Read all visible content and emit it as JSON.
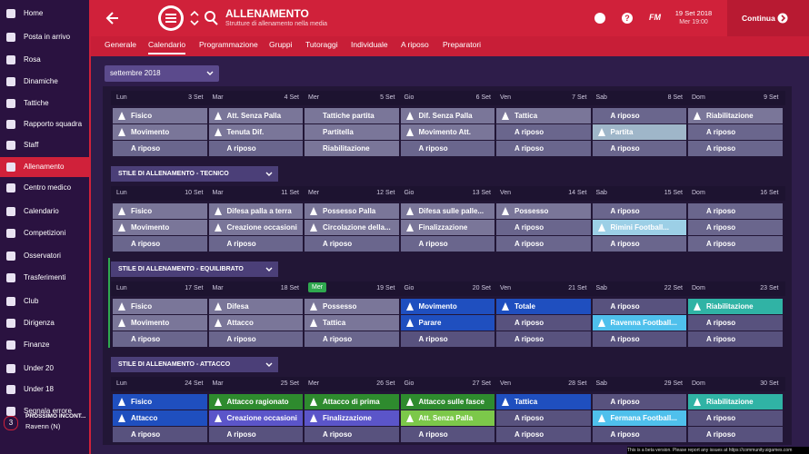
{
  "sidebar": {
    "items": [
      "Home",
      "Posta in arrivo",
      "Rosa",
      "Dinamiche",
      "Tattiche",
      "Rapporto squadra",
      "Staff",
      "Allenamento",
      "Centro medico",
      "Calendario",
      "Competizioni",
      "Osservatori",
      "Trasferimenti",
      "Club",
      "Dirigenza",
      "Finanze",
      "Under 20",
      "Under 18",
      "Segnala errore"
    ],
    "next_match": {
      "badge": "3",
      "label": "PROSSIMO INCONT...",
      "opponent": "Ravenn (N)"
    }
  },
  "header": {
    "title": "ALLENAMENTO",
    "subtitle": "Strutture di allenamento nella media",
    "brand": "FM",
    "date": "19 Set 2018",
    "time": "Mer 19:00",
    "continue": "Continua"
  },
  "tabs": [
    "Generale",
    "Calendario",
    "Programmazione",
    "Gruppi",
    "Tutoraggi",
    "Individuale",
    "A riposo",
    "Preparatori"
  ],
  "month": "settembre 2018",
  "weeks": [
    {
      "days": [
        {
          "name": "Lun",
          "date": "3 Set"
        },
        {
          "name": "Mar",
          "date": "4 Set"
        },
        {
          "name": "Mer",
          "date": "5 Set"
        },
        {
          "name": "Gio",
          "date": "6 Set"
        },
        {
          "name": "Ven",
          "date": "7 Set"
        },
        {
          "name": "Sab",
          "date": "8 Set"
        },
        {
          "name": "Dom",
          "date": "9 Set"
        }
      ],
      "rows": [
        [
          {
            "label": "Fisico",
            "color": "#7a7699"
          },
          {
            "label": "Att. Senza Palla",
            "color": "#7a7699"
          },
          {
            "label": "Tattiche partita",
            "color": "#7a7699"
          },
          {
            "label": "Dif. Senza Palla",
            "color": "#7a7699"
          },
          {
            "label": "Tattica",
            "color": "#7a7699"
          },
          {
            "label": "A riposo",
            "color": "#6a668d"
          },
          {
            "label": "Riabilitazione",
            "color": "#7a7699"
          }
        ],
        [
          {
            "label": "Movimento",
            "color": "#7a7699"
          },
          {
            "label": "Tenuta Dif.",
            "color": "#7a7699"
          },
          {
            "label": "Partitella",
            "color": "#7a7699"
          },
          {
            "label": "Movimento Att.",
            "color": "#7a7699"
          },
          {
            "label": "A riposo",
            "color": "#6a668d"
          },
          {
            "label": "Partita",
            "color": "#9fb6c9"
          },
          {
            "label": "A riposo",
            "color": "#6a668d"
          }
        ],
        [
          {
            "label": "A riposo",
            "color": "#6a668d"
          },
          {
            "label": "A riposo",
            "color": "#6a668d"
          },
          {
            "label": "Riabilitazione",
            "color": "#7a7699"
          },
          {
            "label": "A riposo",
            "color": "#6a668d"
          },
          {
            "label": "A riposo",
            "color": "#6a668d"
          },
          {
            "label": "A riposo",
            "color": "#6a668d"
          },
          {
            "label": "A riposo",
            "color": "#6a668d"
          }
        ]
      ]
    },
    {
      "style": "STILE DI ALLENAMENTO - TECNICO",
      "days": [
        {
          "name": "Lun",
          "date": "10 Set"
        },
        {
          "name": "Mar",
          "date": "11 Set"
        },
        {
          "name": "Mer",
          "date": "12 Set"
        },
        {
          "name": "Gio",
          "date": "13 Set"
        },
        {
          "name": "Ven",
          "date": "14 Set"
        },
        {
          "name": "Sab",
          "date": "15 Set"
        },
        {
          "name": "Dom",
          "date": "16 Set"
        }
      ],
      "rows": [
        [
          {
            "label": "Fisico",
            "color": "#7a7699"
          },
          {
            "label": "Difesa palla a terra",
            "color": "#7a7699"
          },
          {
            "label": "Possesso Palla",
            "color": "#7a7699"
          },
          {
            "label": "Difesa sulle palle...",
            "color": "#7a7699"
          },
          {
            "label": "Possesso",
            "color": "#7a7699"
          },
          {
            "label": "A riposo",
            "color": "#6a668d"
          },
          {
            "label": "A riposo",
            "color": "#6a668d"
          }
        ],
        [
          {
            "label": "Movimento",
            "color": "#7a7699"
          },
          {
            "label": "Creazione occasioni",
            "color": "#7a7699"
          },
          {
            "label": "Circolazione della...",
            "color": "#7a7699"
          },
          {
            "label": "Finalizzazione",
            "color": "#7a7699"
          },
          {
            "label": "A riposo",
            "color": "#6a668d"
          },
          {
            "label": "Rimini Football...",
            "color": "#9ccfe6"
          },
          {
            "label": "A riposo",
            "color": "#6a668d"
          }
        ],
        [
          {
            "label": "A riposo",
            "color": "#6a668d"
          },
          {
            "label": "A riposo",
            "color": "#6a668d"
          },
          {
            "label": "A riposo",
            "color": "#6a668d"
          },
          {
            "label": "A riposo",
            "color": "#6a668d"
          },
          {
            "label": "A riposo",
            "color": "#6a668d"
          },
          {
            "label": "A riposo",
            "color": "#6a668d"
          },
          {
            "label": "A riposo",
            "color": "#6a668d"
          }
        ]
      ]
    },
    {
      "style": "STILE DI ALLENAMENTO - EQUILIBRATO",
      "days": [
        {
          "name": "Lun",
          "date": "17 Set"
        },
        {
          "name": "Mar",
          "date": "18 Set"
        },
        {
          "name": "Mer",
          "date": "19 Set",
          "highlight": "#2fa84f"
        },
        {
          "name": "Gio",
          "date": "20 Set"
        },
        {
          "name": "Ven",
          "date": "21 Set"
        },
        {
          "name": "Sab",
          "date": "22 Set"
        },
        {
          "name": "Dom",
          "date": "23 Set"
        }
      ],
      "rows": [
        [
          {
            "label": "Fisico",
            "color": "#7a7699"
          },
          {
            "label": "Difesa",
            "color": "#7a7699"
          },
          {
            "label": "Possesso",
            "color": "#7a7699"
          },
          {
            "label": "Movimento",
            "color": "#1f4fbf"
          },
          {
            "label": "Totale",
            "color": "#1f4fbf"
          },
          {
            "label": "A riposo",
            "color": "#58527e"
          },
          {
            "label": "Riabilitazione",
            "color": "#30b3a5"
          }
        ],
        [
          {
            "label": "Movimento",
            "color": "#7a7699"
          },
          {
            "label": "Attacco",
            "color": "#7a7699"
          },
          {
            "label": "Tattica",
            "color": "#7a7699"
          },
          {
            "label": "Parare",
            "color": "#1f4fbf"
          },
          {
            "label": "A riposo",
            "color": "#58527e"
          },
          {
            "label": "Ravenna Football...",
            "color": "#4fc0ec"
          },
          {
            "label": "A riposo",
            "color": "#58527e"
          }
        ],
        [
          {
            "label": "A riposo",
            "color": "#6a668d"
          },
          {
            "label": "A riposo",
            "color": "#6a668d"
          },
          {
            "label": "A riposo",
            "color": "#6a668d"
          },
          {
            "label": "A riposo",
            "color": "#58527e"
          },
          {
            "label": "A riposo",
            "color": "#58527e"
          },
          {
            "label": "A riposo",
            "color": "#58527e"
          },
          {
            "label": "A riposo",
            "color": "#58527e"
          }
        ]
      ]
    },
    {
      "style": "STILE DI ALLENAMENTO - ATTACCO",
      "days": [
        {
          "name": "Lun",
          "date": "24 Set"
        },
        {
          "name": "Mar",
          "date": "25 Set"
        },
        {
          "name": "Mer",
          "date": "26 Set"
        },
        {
          "name": "Gio",
          "date": "27 Set"
        },
        {
          "name": "Ven",
          "date": "28 Set"
        },
        {
          "name": "Sab",
          "date": "29 Set"
        },
        {
          "name": "Dom",
          "date": "30 Set"
        }
      ],
      "rows": [
        [
          {
            "label": "Fisico",
            "color": "#1f4fbf"
          },
          {
            "label": "Attacco ragionato",
            "color": "#2e8b2e"
          },
          {
            "label": "Attacco di prima",
            "color": "#2e8b2e"
          },
          {
            "label": "Attacco sulle fasce",
            "color": "#2e8b2e"
          },
          {
            "label": "Tattica",
            "color": "#1f4fbf"
          },
          {
            "label": "A riposo",
            "color": "#58527e"
          },
          {
            "label": "Riabilitazione",
            "color": "#30b3a5"
          }
        ],
        [
          {
            "label": "Attacco",
            "color": "#1f4fbf"
          },
          {
            "label": "Creazione occasioni",
            "color": "#5b55c9"
          },
          {
            "label": "Finalizzazione",
            "color": "#5b55c9"
          },
          {
            "label": "Att. Senza Palla",
            "color": "#7cc84a"
          },
          {
            "label": "A riposo",
            "color": "#58527e"
          },
          {
            "label": "Fermana Football...",
            "color": "#4fc0ec"
          },
          {
            "label": "A riposo",
            "color": "#58527e"
          }
        ],
        [
          {
            "label": "A riposo",
            "color": "#58527e"
          },
          {
            "label": "A riposo",
            "color": "#58527e"
          },
          {
            "label": "A riposo",
            "color": "#58527e"
          },
          {
            "label": "A riposo",
            "color": "#58527e"
          },
          {
            "label": "A riposo",
            "color": "#58527e"
          },
          {
            "label": "A riposo",
            "color": "#58527e"
          },
          {
            "label": "A riposo",
            "color": "#58527e"
          }
        ]
      ]
    }
  ],
  "footer": "This is a beta version. Please report any issues at https://community.sigames.com"
}
